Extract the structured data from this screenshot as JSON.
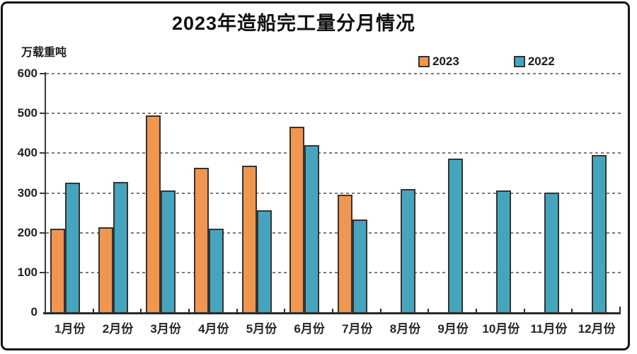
{
  "page": {
    "background": "#ffffff",
    "frame_border_color": "#141414"
  },
  "chart_data": {
    "type": "bar",
    "title": "2023年造船完工量分月情况",
    "ylabel": "万载重吨",
    "xlabel": "",
    "categories": [
      "1月份",
      "2月份",
      "3月份",
      "4月份",
      "5月份",
      "6月份",
      "7月份",
      "8月份",
      "9月份",
      "10月份",
      "11月份",
      "12月份"
    ],
    "series": [
      {
        "name": "2023",
        "color": "#F0964E",
        "values": [
          211,
          214,
          495,
          363,
          368,
          467,
          296,
          null,
          null,
          null,
          null,
          null
        ]
      },
      {
        "name": "2022",
        "color": "#46A5BE",
        "values": [
          325,
          328,
          307,
          210,
          256,
          421,
          233,
          309,
          387,
          306,
          301,
          395
        ]
      }
    ],
    "ylim": [
      0,
      600
    ],
    "yticks": [
      0,
      100,
      200,
      300,
      400,
      500,
      600
    ],
    "grid": "horizontal-dashed",
    "gridline_color": "#7b7b7b",
    "axis_color": "#2b2b2b",
    "bar_outline_color": "#343434",
    "legend_position": "top-right"
  }
}
